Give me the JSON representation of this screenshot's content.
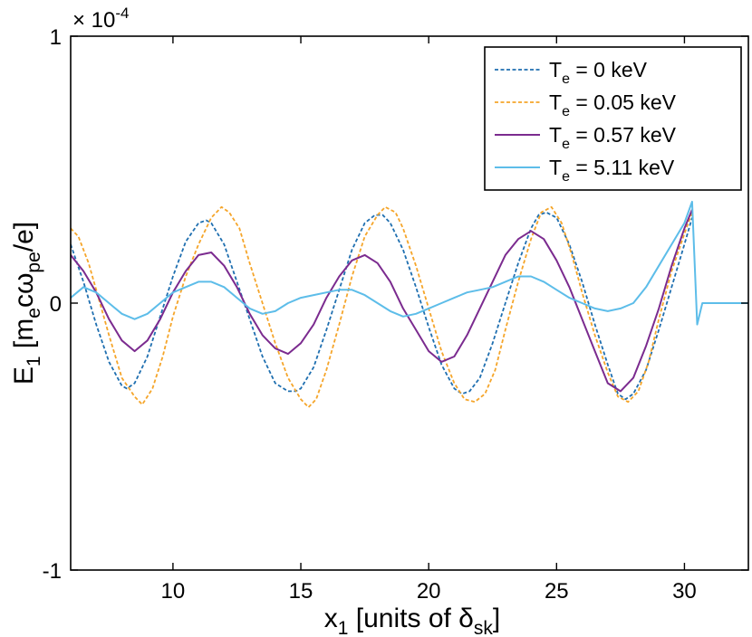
{
  "chart_data": {
    "type": "line",
    "title": "",
    "xlabel": {
      "main": "x",
      "sub": "1",
      "rest": " [units of δ",
      "sub2": "sk",
      "end": "]"
    },
    "ylabel": {
      "main": "E",
      "sub": "1",
      "rest": " [m",
      "sub2": "e",
      "mid": "cω",
      "sub3": "pe",
      "end": "/e]"
    },
    "y_multiplier": {
      "prefix": "× 10",
      "exponent": "-4"
    },
    "xlim": [
      6.0,
      32.5
    ],
    "ylim": [
      -1.0,
      1.0
    ],
    "x_ticks": [
      10,
      15,
      20,
      25,
      30
    ],
    "x_tick_labels": [
      "10",
      "15",
      "20",
      "25",
      "30"
    ],
    "y_ticks": [
      -1,
      0,
      1
    ],
    "y_tick_labels": [
      "-1",
      "0",
      "1"
    ],
    "grid": false,
    "legend": {
      "placement": "top-right",
      "entries": [
        {
          "prefix": "T",
          "sub": "e",
          "text": " = 0 keV"
        },
        {
          "prefix": "T",
          "sub": "e",
          "text": " = 0.05 keV"
        },
        {
          "prefix": "T",
          "sub": "e",
          "text": " = 0.57 keV"
        },
        {
          "prefix": "T",
          "sub": "e",
          "text": " = 5.11 keV"
        }
      ]
    },
    "series": [
      {
        "color": "#1f6fb0",
        "style": "dashed",
        "x": [
          6.0,
          6.5,
          7.0,
          7.5,
          8.0,
          8.2,
          8.5,
          9.0,
          9.5,
          10.0,
          10.5,
          11.0,
          11.3,
          11.5,
          12.0,
          12.5,
          13.0,
          13.5,
          14.0,
          14.5,
          14.8,
          15.0,
          15.5,
          16.0,
          16.5,
          17.0,
          17.5,
          17.9,
          18.2,
          18.5,
          19.0,
          19.5,
          20.0,
          20.5,
          21.0,
          21.3,
          21.6,
          22.0,
          22.5,
          23.0,
          23.5,
          24.0,
          24.3,
          24.6,
          25.0,
          25.5,
          26.0,
          26.5,
          27.0,
          27.4,
          27.7,
          28.0,
          28.5,
          29.0,
          29.5,
          30.0,
          30.3
        ],
        "y": [
          0.22,
          0.08,
          -0.08,
          -0.22,
          -0.31,
          -0.32,
          -0.3,
          -0.2,
          -0.05,
          0.1,
          0.23,
          0.3,
          0.31,
          0.3,
          0.22,
          0.08,
          -0.06,
          -0.2,
          -0.3,
          -0.33,
          -0.33,
          -0.32,
          -0.24,
          -0.1,
          0.05,
          0.2,
          0.3,
          0.33,
          0.33,
          0.3,
          0.2,
          0.06,
          -0.09,
          -0.23,
          -0.32,
          -0.34,
          -0.33,
          -0.28,
          -0.15,
          0.0,
          0.15,
          0.28,
          0.33,
          0.34,
          0.32,
          0.22,
          0.08,
          -0.08,
          -0.23,
          -0.34,
          -0.36,
          -0.34,
          -0.25,
          -0.1,
          0.06,
          0.22,
          0.32
        ]
      },
      {
        "color": "#f5a52a",
        "style": "dashed",
        "x": [
          6.0,
          6.3,
          6.7,
          7.0,
          7.5,
          8.0,
          8.5,
          8.8,
          9.2,
          9.6,
          10.0,
          10.5,
          11.0,
          11.5,
          11.9,
          12.2,
          12.6,
          13.0,
          13.5,
          14.0,
          14.5,
          15.0,
          15.3,
          15.6,
          16.0,
          16.5,
          17.0,
          17.5,
          18.0,
          18.3,
          18.7,
          19.0,
          19.5,
          20.0,
          20.5,
          21.0,
          21.4,
          21.8,
          22.2,
          22.6,
          23.0,
          23.5,
          24.0,
          24.4,
          24.8,
          25.2,
          25.6,
          26.0,
          26.5,
          27.0,
          27.4,
          27.8,
          28.2,
          28.6,
          29.0,
          29.5,
          30.0,
          30.3
        ],
        "y": [
          0.28,
          0.25,
          0.15,
          0.05,
          -0.12,
          -0.28,
          -0.35,
          -0.38,
          -0.32,
          -0.2,
          -0.05,
          0.1,
          0.22,
          0.32,
          0.36,
          0.34,
          0.28,
          0.15,
          0.0,
          -0.15,
          -0.28,
          -0.36,
          -0.39,
          -0.36,
          -0.25,
          -0.08,
          0.1,
          0.25,
          0.33,
          0.36,
          0.34,
          0.28,
          0.14,
          -0.02,
          -0.18,
          -0.3,
          -0.36,
          -0.37,
          -0.34,
          -0.25,
          -0.1,
          0.08,
          0.24,
          0.34,
          0.36,
          0.3,
          0.18,
          0.04,
          -0.12,
          -0.26,
          -0.35,
          -0.37,
          -0.33,
          -0.22,
          -0.06,
          0.12,
          0.26,
          0.34
        ]
      },
      {
        "color": "#7b2b8f",
        "style": "solid",
        "x": [
          6.0,
          6.5,
          7.0,
          7.5,
          8.0,
          8.5,
          9.0,
          9.5,
          10.0,
          10.5,
          11.0,
          11.5,
          12.0,
          12.5,
          13.0,
          13.5,
          14.0,
          14.5,
          15.0,
          15.5,
          16.0,
          16.5,
          17.0,
          17.5,
          18.0,
          18.5,
          19.0,
          19.5,
          20.0,
          20.5,
          21.0,
          21.5,
          22.0,
          22.5,
          23.0,
          23.5,
          24.0,
          24.5,
          25.0,
          25.5,
          26.0,
          26.5,
          27.0,
          27.5,
          28.0,
          28.5,
          29.0,
          29.5,
          30.0,
          30.3
        ],
        "y": [
          0.18,
          0.12,
          0.04,
          -0.06,
          -0.14,
          -0.18,
          -0.14,
          -0.06,
          0.04,
          0.12,
          0.18,
          0.19,
          0.14,
          0.06,
          -0.04,
          -0.12,
          -0.17,
          -0.19,
          -0.15,
          -0.08,
          0.02,
          0.1,
          0.16,
          0.18,
          0.15,
          0.08,
          -0.02,
          -0.1,
          -0.18,
          -0.22,
          -0.2,
          -0.12,
          -0.02,
          0.08,
          0.18,
          0.24,
          0.27,
          0.24,
          0.16,
          0.06,
          -0.06,
          -0.18,
          -0.3,
          -0.33,
          -0.28,
          -0.16,
          -0.02,
          0.14,
          0.28,
          0.35
        ]
      },
      {
        "color": "#5dbde9",
        "style": "solid",
        "x": [
          6.0,
          6.5,
          7.0,
          7.5,
          8.0,
          8.5,
          9.0,
          9.5,
          10.0,
          10.5,
          11.0,
          11.5,
          12.0,
          12.5,
          13.0,
          13.5,
          14.0,
          14.5,
          15.0,
          15.5,
          16.0,
          16.5,
          17.0,
          17.5,
          18.0,
          18.5,
          19.0,
          19.5,
          20.0,
          20.5,
          21.0,
          21.5,
          22.0,
          22.5,
          23.0,
          23.5,
          24.0,
          24.5,
          25.0,
          25.5,
          26.0,
          26.5,
          27.0,
          27.5,
          28.0,
          28.5,
          29.0,
          29.5,
          30.0,
          30.3,
          30.5,
          30.7,
          32.5
        ],
        "y": [
          0.02,
          0.06,
          0.04,
          0.0,
          -0.04,
          -0.06,
          -0.04,
          0.0,
          0.04,
          0.06,
          0.08,
          0.08,
          0.06,
          0.02,
          -0.02,
          -0.04,
          -0.03,
          0.0,
          0.02,
          0.03,
          0.04,
          0.05,
          0.05,
          0.03,
          0.0,
          -0.03,
          -0.05,
          -0.04,
          -0.02,
          0.0,
          0.02,
          0.04,
          0.05,
          0.06,
          0.08,
          0.1,
          0.1,
          0.08,
          0.05,
          0.02,
          0.0,
          -0.02,
          -0.03,
          -0.02,
          0.0,
          0.06,
          0.14,
          0.22,
          0.3,
          0.38,
          -0.08,
          0.0,
          0.0
        ]
      }
    ]
  }
}
